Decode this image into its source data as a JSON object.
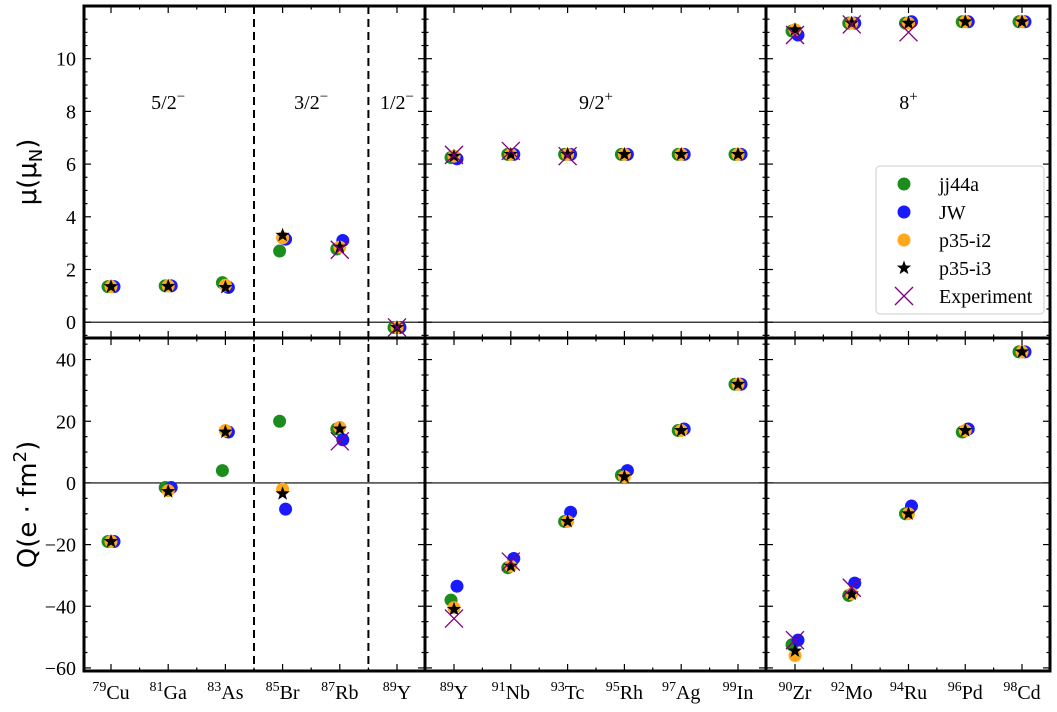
{
  "chart_data": {
    "type": "scatter",
    "layout": "2x3 grid of panels (rows: magnetic moment, quadrupole moment; columns: nuclide groups)",
    "rows": [
      {
        "key": "mu",
        "ylabel": "μ(μ",
        "ylabel_sub": "N",
        "ylabel_tail": ")",
        "ylim": [
          -0.6,
          12
        ],
        "yticks": [
          0,
          2,
          4,
          6,
          8,
          10
        ],
        "zero_line": true
      },
      {
        "key": "Q",
        "ylabel": "Q(e · fm",
        "ylabel_sup": "2",
        "ylabel_tail": ")",
        "ylim": [
          -61,
          47
        ],
        "yticks": [
          -60,
          -40,
          -20,
          0,
          20,
          40
        ],
        "zero_line": true
      }
    ],
    "series": [
      {
        "name": "jj44a",
        "marker": "circle",
        "color": "#1c8c1c"
      },
      {
        "name": "JW",
        "marker": "circle",
        "color": "#1a1aff"
      },
      {
        "name": "p35-i2",
        "marker": "circle",
        "color": "#ffa81c"
      },
      {
        "name": "p35-i3",
        "marker": "star",
        "color": "#000000"
      },
      {
        "name": "Experiment",
        "marker": "x",
        "color": "#800080"
      }
    ],
    "legend": {
      "panel": "top-right",
      "placement": "lower-right"
    },
    "columns": [
      {
        "nuclides": [
          {
            "mass": "79",
            "el": "Cu"
          },
          {
            "mass": "81",
            "el": "Ga"
          },
          {
            "mass": "83",
            "el": "As"
          },
          {
            "mass": "85",
            "el": "Br"
          },
          {
            "mass": "87",
            "el": "Rb"
          },
          {
            "mass": "89",
            "el": "Y"
          }
        ],
        "groups": [
          {
            "label": "5/2",
            "sup": "−",
            "from": 0,
            "to": 2
          },
          {
            "label": "3/2",
            "sup": "−",
            "from": 3,
            "to": 4
          },
          {
            "label": "1/2",
            "sup": "−",
            "from": 5,
            "to": 5
          }
        ],
        "dividers": [
          2.5,
          4.5
        ],
        "mu": {
          "jj44a": [
            1.35,
            1.38,
            1.5,
            2.7,
            2.78,
            -0.2
          ],
          "JW": [
            1.35,
            1.38,
            1.32,
            3.15,
            3.1,
            -0.2
          ],
          "p35-i2": [
            1.35,
            1.38,
            1.4,
            3.2,
            2.85,
            -0.2
          ],
          "p35-i3": [
            1.35,
            1.36,
            1.32,
            3.3,
            2.85,
            -0.2
          ],
          "Experiment": [
            null,
            null,
            null,
            null,
            2.75,
            -0.2
          ]
        },
        "Q": {
          "jj44a": [
            -19,
            -1.5,
            4,
            20,
            17.5,
            null
          ],
          "JW": [
            -19,
            -1.5,
            16.5,
            -8.5,
            14,
            null
          ],
          "p35-i2": [
            -19,
            -2.5,
            17,
            -2,
            18,
            null
          ],
          "p35-i3": [
            -19,
            -2.8,
            16.5,
            -3.5,
            17.5,
            null
          ],
          "Experiment": [
            null,
            null,
            null,
            null,
            13.5,
            null
          ]
        }
      },
      {
        "nuclides": [
          {
            "mass": "89",
            "el": "Y"
          },
          {
            "mass": "91",
            "el": "Nb"
          },
          {
            "mass": "93",
            "el": "Tc"
          },
          {
            "mass": "95",
            "el": "Rh"
          },
          {
            "mass": "97",
            "el": "Ag"
          },
          {
            "mass": "99",
            "el": "In"
          }
        ],
        "groups": [
          {
            "label": "9/2",
            "sup": "+",
            "from": 0,
            "to": 5
          }
        ],
        "dividers": [],
        "mu": {
          "jj44a": [
            6.25,
            6.37,
            6.37,
            6.37,
            6.37,
            6.37
          ],
          "JW": [
            6.2,
            6.37,
            6.37,
            6.37,
            6.37,
            6.37
          ],
          "p35-i2": [
            6.3,
            6.37,
            6.37,
            6.37,
            6.37,
            6.37
          ],
          "p35-i3": [
            6.3,
            6.37,
            6.37,
            6.37,
            6.37,
            6.37
          ],
          "Experiment": [
            6.35,
            6.5,
            6.3,
            null,
            null,
            null
          ]
        },
        "Q": {
          "jj44a": [
            -38,
            -27.5,
            -12.5,
            2.5,
            17,
            32
          ],
          "JW": [
            -33.5,
            -24.5,
            -9.5,
            4,
            17.5,
            32
          ],
          "p35-i2": [
            -40.5,
            -27,
            -12.5,
            2,
            17,
            32
          ],
          "p35-i3": [
            -41,
            -27,
            -12.5,
            2,
            17,
            32
          ],
          "Experiment": [
            -44,
            -25.5,
            null,
            null,
            null,
            null
          ]
        }
      },
      {
        "nuclides": [
          {
            "mass": "90",
            "el": "Zr"
          },
          {
            "mass": "92",
            "el": "Mo"
          },
          {
            "mass": "94",
            "el": "Ru"
          },
          {
            "mass": "96",
            "el": "Pd"
          },
          {
            "mass": "98",
            "el": "Cd"
          }
        ],
        "groups": [
          {
            "label": "8",
            "sup": "+",
            "from": 0,
            "to": 4
          }
        ],
        "dividers": [],
        "mu": {
          "jj44a": [
            11.05,
            11.35,
            11.35,
            11.4,
            11.4
          ],
          "JW": [
            10.9,
            11.35,
            11.4,
            11.4,
            11.4
          ],
          "p35-i2": [
            11.1,
            11.35,
            11.35,
            11.4,
            11.4
          ],
          "p35-i3": [
            11.1,
            11.35,
            11.35,
            11.4,
            11.4
          ],
          "Experiment": [
            10.9,
            11.3,
            11.0,
            null,
            null
          ]
        },
        "Q": {
          "jj44a": [
            -52.5,
            -36.5,
            -10,
            16.5,
            42.5
          ],
          "JW": [
            -51,
            -32.5,
            -7.5,
            17.5,
            42.5
          ],
          "p35-i2": [
            -56,
            -36,
            -10,
            17,
            42.5
          ],
          "p35-i3": [
            -54.5,
            -36,
            -10,
            17,
            42.5
          ],
          "Experiment": [
            -51,
            -34,
            null,
            null,
            null
          ]
        }
      }
    ]
  }
}
